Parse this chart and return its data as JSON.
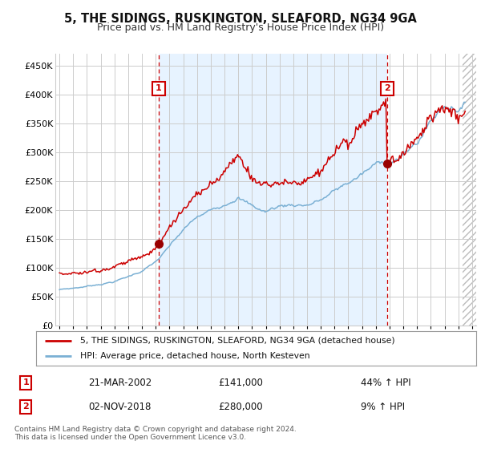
{
  "title": "5, THE SIDINGS, RUSKINGTON, SLEAFORD, NG34 9GA",
  "subtitle": "Price paid vs. HM Land Registry's House Price Index (HPI)",
  "ylabel_ticks": [
    "£0",
    "£50K",
    "£100K",
    "£150K",
    "£200K",
    "£250K",
    "£300K",
    "£350K",
    "£400K",
    "£450K"
  ],
  "ytick_values": [
    0,
    50000,
    100000,
    150000,
    200000,
    250000,
    300000,
    350000,
    400000,
    450000
  ],
  "ylim": [
    0,
    470000
  ],
  "xlim_start": 1994.7,
  "xlim_end": 2025.3,
  "red_line_color": "#cc0000",
  "blue_line_color": "#7ab0d4",
  "vline_color": "#cc0000",
  "shade_color": "#ddeeff",
  "hatch_color": "#cccccc",
  "sale1_x": 2002.22,
  "sale1_y": 141000,
  "sale2_x": 2018.84,
  "sale2_y": 280000,
  "data_end_x": 2024.3,
  "legend_label1": "5, THE SIDINGS, RUSKINGTON, SLEAFORD, NG34 9GA (detached house)",
  "legend_label2": "HPI: Average price, detached house, North Kesteven",
  "table_row1": [
    "1",
    "21-MAR-2002",
    "£141,000",
    "44% ↑ HPI"
  ],
  "table_row2": [
    "2",
    "02-NOV-2018",
    "£280,000",
    "9% ↑ HPI"
  ],
  "footnote": "Contains HM Land Registry data © Crown copyright and database right 2024.\nThis data is licensed under the Open Government Licence v3.0.",
  "background_color": "#ffffff",
  "grid_color": "#cccccc"
}
